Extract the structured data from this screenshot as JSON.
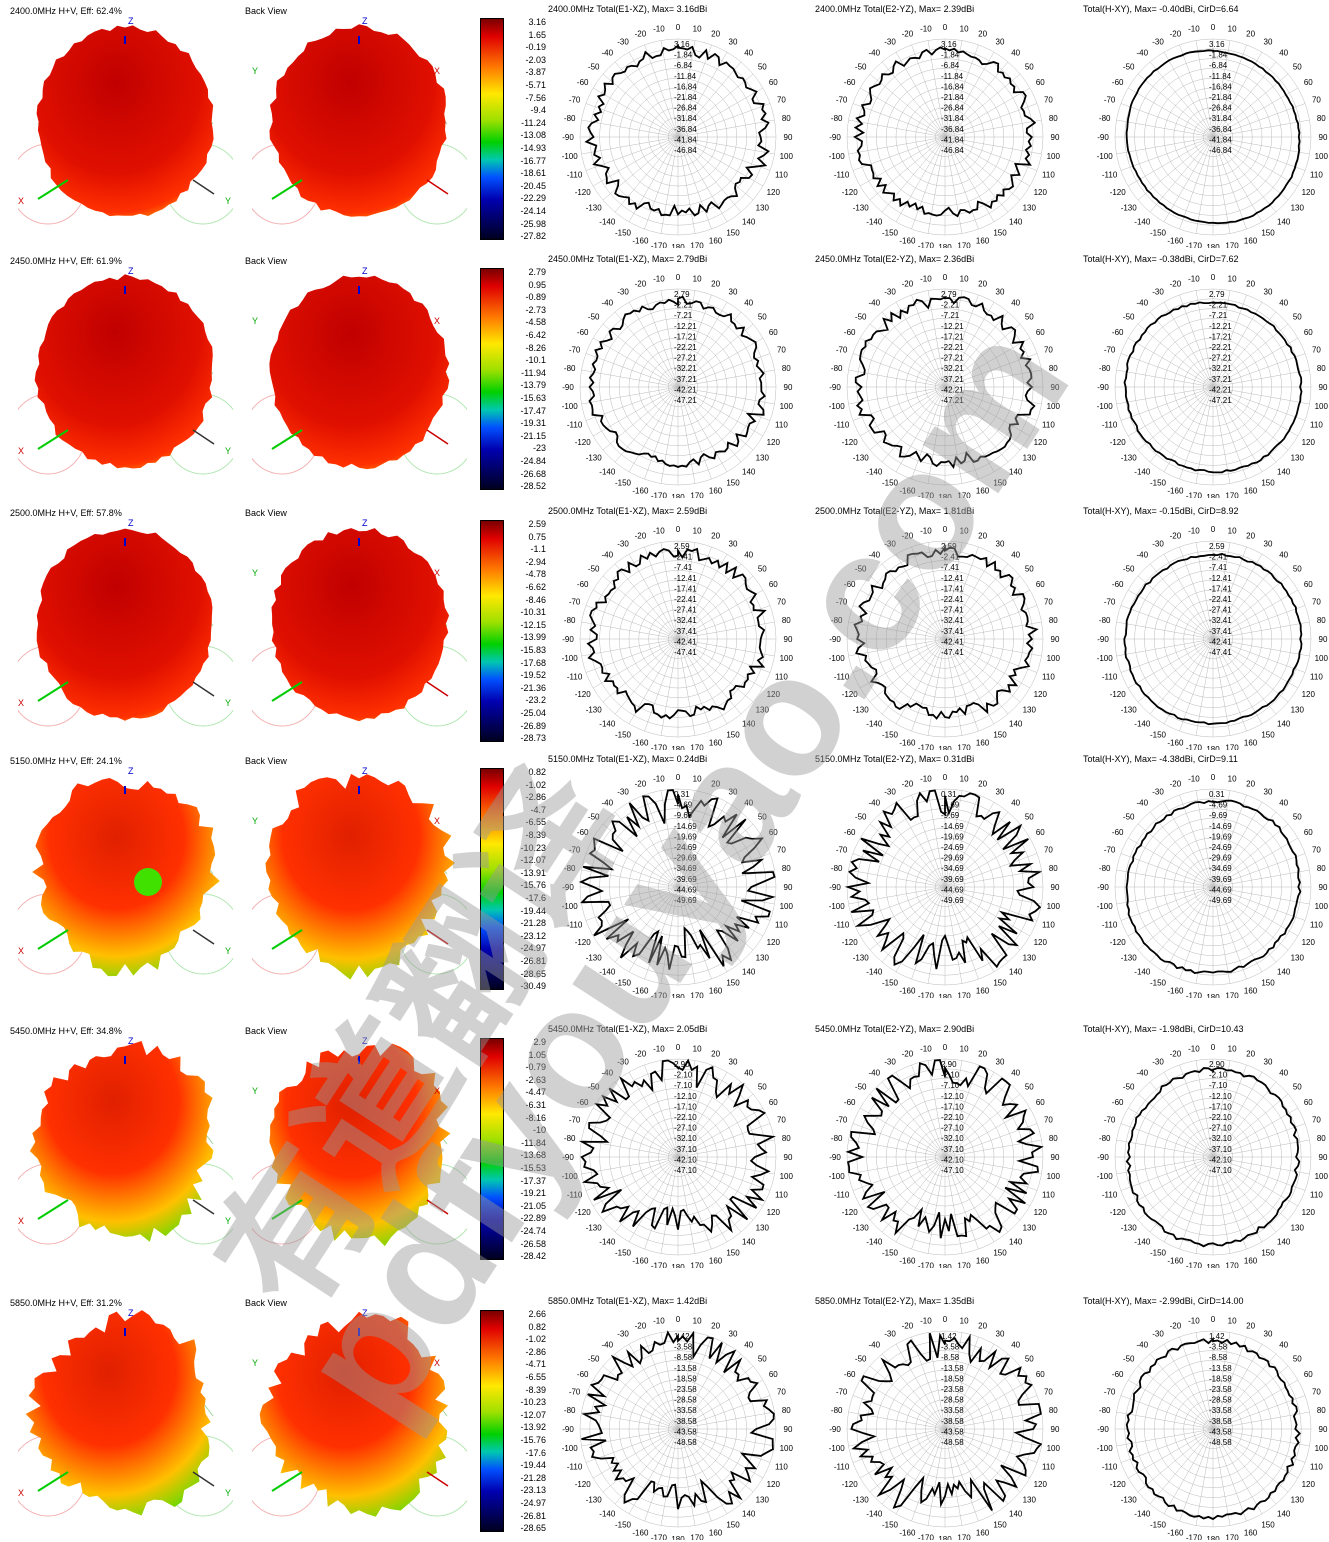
{
  "back_view_label": "Back View",
  "colors": {
    "pattern_hot": "#c00000",
    "pattern_warm": "#ff3000",
    "pattern_mid": "#ffc000",
    "polar_line": "#000000",
    "polar_grid": "#bbbbbb",
    "axis_z": "#0000cc",
    "axis_x": "#00cc00",
    "axis_y": "#cc0000",
    "watermark": "#9a9a9a"
  },
  "polar_angle_labels": [
    "0",
    "10",
    "20",
    "30",
    "40",
    "50",
    "60",
    "70",
    "80",
    "90",
    "100",
    "110",
    "120",
    "130",
    "140",
    "150",
    "160",
    "170",
    "180",
    "-170",
    "-160",
    "-150",
    "-140",
    "-130",
    "-120",
    "-110",
    "-100",
    "-90",
    "-80",
    "-70",
    "-60",
    "-50",
    "-40",
    "-30",
    "-20",
    "-10"
  ],
  "axis_letters": {
    "z": "Z",
    "x": "X",
    "y": "Y"
  },
  "watermark": {
    "url": "pdfyouyao.com",
    "cn": "有道翻译"
  },
  "rows": [
    {
      "label": "2400.0MHz H+V, Eff: 62.4%",
      "colorbar": [
        "3.16",
        "1.65",
        "-0.19",
        "-2.03",
        "-3.87",
        "-5.71",
        "-7.56",
        "-9.4",
        "-11.24",
        "-13.08",
        "-14.93",
        "-16.77",
        "-18.61",
        "-20.45",
        "-22.29",
        "-24.14",
        "-25.98",
        "-27.82"
      ],
      "polars": [
        {
          "title": "2400.0MHz Total(E1-XZ), Max= 3.16dBi",
          "rings": [
            "3.16",
            "-1.84",
            "-6.84",
            "-11.84",
            "-16.84",
            "-21.84",
            "-26.84",
            "-31.84",
            "-36.84",
            "-41.84",
            "-46.84"
          ]
        },
        {
          "title": "2400.0MHz Total(E2-YZ), Max= 2.39dBi",
          "rings": [
            "3.16",
            "-1.84",
            "-6.84",
            "-11.84",
            "-16.84",
            "-21.84",
            "-26.84",
            "-31.84",
            "-36.84",
            "-41.84",
            "-46.84"
          ]
        },
        {
          "title": "Total(H-XY), Max= -0.40dBi, CirD=6.64",
          "rings": [
            "3.16",
            "-1.84",
            "-6.84",
            "-11.84",
            "-16.84",
            "-21.84",
            "-26.84",
            "-31.84",
            "-36.84",
            "-41.84",
            "-46.84"
          ]
        }
      ]
    },
    {
      "label": "2450.0MHz H+V, Eff: 61.9%",
      "colorbar": [
        "2.79",
        "0.95",
        "-0.89",
        "-2.73",
        "-4.58",
        "-6.42",
        "-8.26",
        "-10.1",
        "-11.94",
        "-13.79",
        "-15.63",
        "-17.47",
        "-19.31",
        "-21.15",
        "-23",
        "-24.84",
        "-26.68",
        "-28.52"
      ],
      "polars": [
        {
          "title": "2450.0MHz Total(E1-XZ), Max= 2.79dBi",
          "rings": [
            "2.79",
            "-2.21",
            "-7.21",
            "-12.21",
            "-17.21",
            "-22.21",
            "-27.21",
            "-32.21",
            "-37.21",
            "-42.21",
            "-47.21"
          ]
        },
        {
          "title": "2450.0MHz Total(E2-YZ), Max= 2.36dBi",
          "rings": [
            "2.79",
            "-2.21",
            "-7.21",
            "-12.21",
            "-17.21",
            "-22.21",
            "-27.21",
            "-32.21",
            "-37.21",
            "-42.21",
            "-47.21"
          ]
        },
        {
          "title": "Total(H-XY), Max= -0.38dBi, CirD=7.62",
          "rings": [
            "2.79",
            "-2.21",
            "-7.21",
            "-12.21",
            "-17.21",
            "-22.21",
            "-27.21",
            "-32.21",
            "-37.21",
            "-42.21",
            "-47.21"
          ]
        }
      ]
    },
    {
      "label": "2500.0MHz H+V, Eff: 57.8%",
      "colorbar": [
        "2.59",
        "0.75",
        "-1.1",
        "-2.94",
        "-4.78",
        "-6.62",
        "-8.46",
        "-10.31",
        "-12.15",
        "-13.99",
        "-15.83",
        "-17.68",
        "-19.52",
        "-21.36",
        "-23.2",
        "-25.04",
        "-26.89",
        "-28.73"
      ],
      "polars": [
        {
          "title": "2500.0MHz Total(E1-XZ), Max= 2.59dBi",
          "rings": [
            "2.59",
            "-2.41",
            "-7.41",
            "-12.41",
            "-17.41",
            "-22.41",
            "-27.41",
            "-32.41",
            "-37.41",
            "-42.41",
            "-47.41"
          ]
        },
        {
          "title": "2500.0MHz Total(E2-YZ), Max= 1.81dBi",
          "rings": [
            "2.59",
            "-2.41",
            "-7.41",
            "-12.41",
            "-17.41",
            "-22.41",
            "-27.41",
            "-32.41",
            "-37.41",
            "-42.41",
            "-47.41"
          ]
        },
        {
          "title": "Total(H-XY), Max= -0.15dBi, CirD=8.92",
          "rings": [
            "2.59",
            "-2.41",
            "-7.41",
            "-12.41",
            "-17.41",
            "-22.41",
            "-27.41",
            "-32.41",
            "-37.41",
            "-42.41",
            "-47.41"
          ]
        }
      ]
    },
    {
      "label": "5150.0MHz H+V, Eff: 24.1%",
      "colorbar": [
        "0.82",
        "-1.02",
        "-2.86",
        "-4.7",
        "-6.55",
        "-8.39",
        "-10.23",
        "-12.07",
        "-13.91",
        "-15.76",
        "-17.6",
        "-19.44",
        "-21.28",
        "-23.12",
        "-24.97",
        "-26.81",
        "-28.65",
        "-30.49"
      ],
      "polars": [
        {
          "title": "5150.0MHz Total(E1-XZ), Max= 0.24dBi",
          "rings": [
            "0.31",
            "-4.69",
            "-9.69",
            "-14.69",
            "-19.69",
            "-24.69",
            "-29.69",
            "-34.69",
            "-39.69",
            "-44.69",
            "-49.69"
          ]
        },
        {
          "title": "5150.0MHz Total(E2-YZ), Max= 0.31dBi",
          "rings": [
            "0.31",
            "-4.69",
            "-9.69",
            "-14.69",
            "-19.69",
            "-24.69",
            "-29.69",
            "-34.69",
            "-39.69",
            "-44.69",
            "-49.69"
          ]
        },
        {
          "title": "Total(H-XY), Max= -4.38dBi, CirD=9.11",
          "rings": [
            "0.31",
            "-4.69",
            "-9.69",
            "-14.69",
            "-19.69",
            "-24.69",
            "-29.69",
            "-34.69",
            "-39.69",
            "-44.69",
            "-49.69"
          ]
        }
      ]
    },
    {
      "label": "5450.0MHz H+V, Eff: 34.8%",
      "colorbar": [
        "2.9",
        "1.05",
        "-0.79",
        "-2.63",
        "-4.47",
        "-6.31",
        "-8.16",
        "-10",
        "-11.84",
        "-13.68",
        "-15.53",
        "-17.37",
        "-19.21",
        "-21.05",
        "-22.89",
        "-24.74",
        "-26.58",
        "-28.42"
      ],
      "polars": [
        {
          "title": "5450.0MHz Total(E1-XZ), Max= 2.05dBi",
          "rings": [
            "2.90",
            "-2.10",
            "-7.10",
            "-12.10",
            "-17.10",
            "-22.10",
            "-27.10",
            "-32.10",
            "-37.10",
            "-42.10",
            "-47.10"
          ]
        },
        {
          "title": "5450.0MHz Total(E2-YZ), Max= 2.90dBi",
          "rings": [
            "2.90",
            "-2.10",
            "-7.10",
            "-12.10",
            "-17.10",
            "-22.10",
            "-27.10",
            "-32.10",
            "-37.10",
            "-42.10",
            "-47.10"
          ]
        },
        {
          "title": "Total(H-XY), Max= -1.98dBi, CirD=10.43",
          "rings": [
            "2.90",
            "-2.10",
            "-7.10",
            "-12.10",
            "-17.10",
            "-22.10",
            "-27.10",
            "-32.10",
            "-37.10",
            "-42.10",
            "-47.10"
          ]
        }
      ]
    },
    {
      "label": "5850.0MHz H+V, Eff: 31.2%",
      "colorbar": [
        "2.66",
        "0.82",
        "-1.02",
        "-2.86",
        "-4.71",
        "-6.55",
        "-8.39",
        "-10.23",
        "-12.07",
        "-13.92",
        "-15.76",
        "-17.6",
        "-19.44",
        "-21.28",
        "-23.13",
        "-24.97",
        "-26.81",
        "-28.65"
      ],
      "polars": [
        {
          "title": "5850.0MHz Total(E1-XZ), Max= 1.42dBi",
          "rings": [
            "1.42",
            "-3.58",
            "-8.58",
            "-13.58",
            "-18.58",
            "-23.58",
            "-28.58",
            "-33.58",
            "-38.58",
            "-43.58",
            "-48.58"
          ]
        },
        {
          "title": "5850.0MHz Total(E2-YZ), Max= 1.35dBi",
          "rings": [
            "1.42",
            "-3.58",
            "-8.58",
            "-13.58",
            "-18.58",
            "-23.58",
            "-28.58",
            "-33.58",
            "-38.58",
            "-43.58",
            "-48.58"
          ]
        },
        {
          "title": "Total(H-XY), Max= -2.99dBi, CirD=14.00",
          "rings": [
            "1.42",
            "-3.58",
            "-8.58",
            "-13.58",
            "-18.58",
            "-23.58",
            "-28.58",
            "-33.58",
            "-38.58",
            "-43.58",
            "-48.58"
          ]
        }
      ]
    }
  ],
  "chart_data": [
    {
      "type": "line",
      "title": "2400.0MHz Total(E1-XZ), Max= 3.16dBi",
      "x": [
        0,
        30,
        60,
        90,
        120,
        150,
        180,
        -150,
        -120,
        -90,
        -60,
        -30
      ],
      "values": [
        3.1,
        1.5,
        -0.5,
        -1.5,
        -3,
        -6,
        -9,
        -8,
        -5,
        -3,
        -1,
        1.5
      ]
    },
    {
      "type": "line",
      "title": "2400.0MHz Total(E2-YZ), Max= 2.39dBi",
      "x": [
        0,
        30,
        60,
        90,
        120,
        150,
        180,
        -150,
        -120,
        -90,
        -60,
        -30
      ],
      "values": [
        2.4,
        1,
        -1,
        -2,
        -4,
        -6,
        -8,
        -7,
        -5,
        -3,
        -1,
        1
      ]
    },
    {
      "type": "line",
      "title": "Total(H-XY), Max= -0.40dBi, CirD=6.64",
      "x": [
        0,
        30,
        60,
        90,
        120,
        150,
        180,
        -150,
        -120,
        -90,
        -60,
        -30
      ],
      "values": [
        -1.5,
        -1,
        -0.5,
        -0.4,
        -1,
        -2.5,
        -4,
        -3.5,
        -2,
        -1.5,
        -2,
        -2
      ]
    }
  ]
}
